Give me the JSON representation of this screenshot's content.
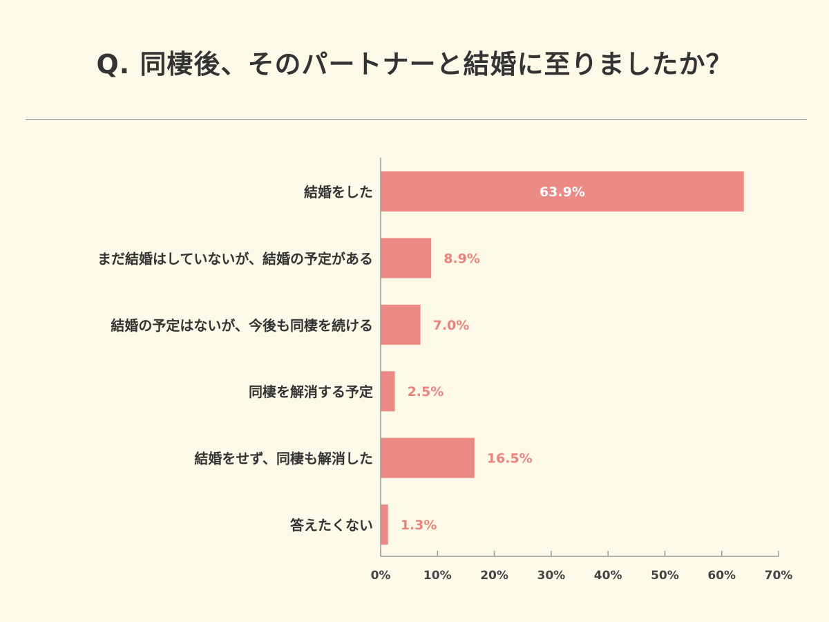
{
  "title": "Q. 同棲後、そのパートナーと結婚に至りましたか？",
  "colors": {
    "background": "#fdf9e9",
    "bar": "#eb8a85",
    "value_label_outside": "#e8837e",
    "value_label_inside": "#ffffff",
    "text": "#333333",
    "axis": "#999999"
  },
  "chart_data": {
    "type": "bar",
    "orientation": "horizontal",
    "title": "Q. 同棲後、そのパートナーと結婚に至りましたか？",
    "categories": [
      "結婚をした",
      "まだ結婚はしていないが、結婚の予定がある",
      "結婚の予定はないが、今後も同棲を続ける",
      "同棲を解消する予定",
      "結婚をせず、同棲も解消した",
      "答えたくない"
    ],
    "values": [
      63.9,
      8.9,
      7.0,
      2.5,
      16.5,
      1.3
    ],
    "value_labels": [
      "63.9%",
      "8.9%",
      "7.0%",
      "2.5%",
      "16.5%",
      "1.3%"
    ],
    "xlim": [
      0,
      70
    ],
    "xticks": [
      0,
      10,
      20,
      30,
      40,
      50,
      60,
      70
    ],
    "xtick_labels": [
      "0%",
      "10%",
      "20%",
      "30%",
      "40%",
      "50%",
      "60%",
      "70%"
    ],
    "xlabel": "",
    "ylabel": "",
    "grid": false,
    "legend": "none"
  }
}
